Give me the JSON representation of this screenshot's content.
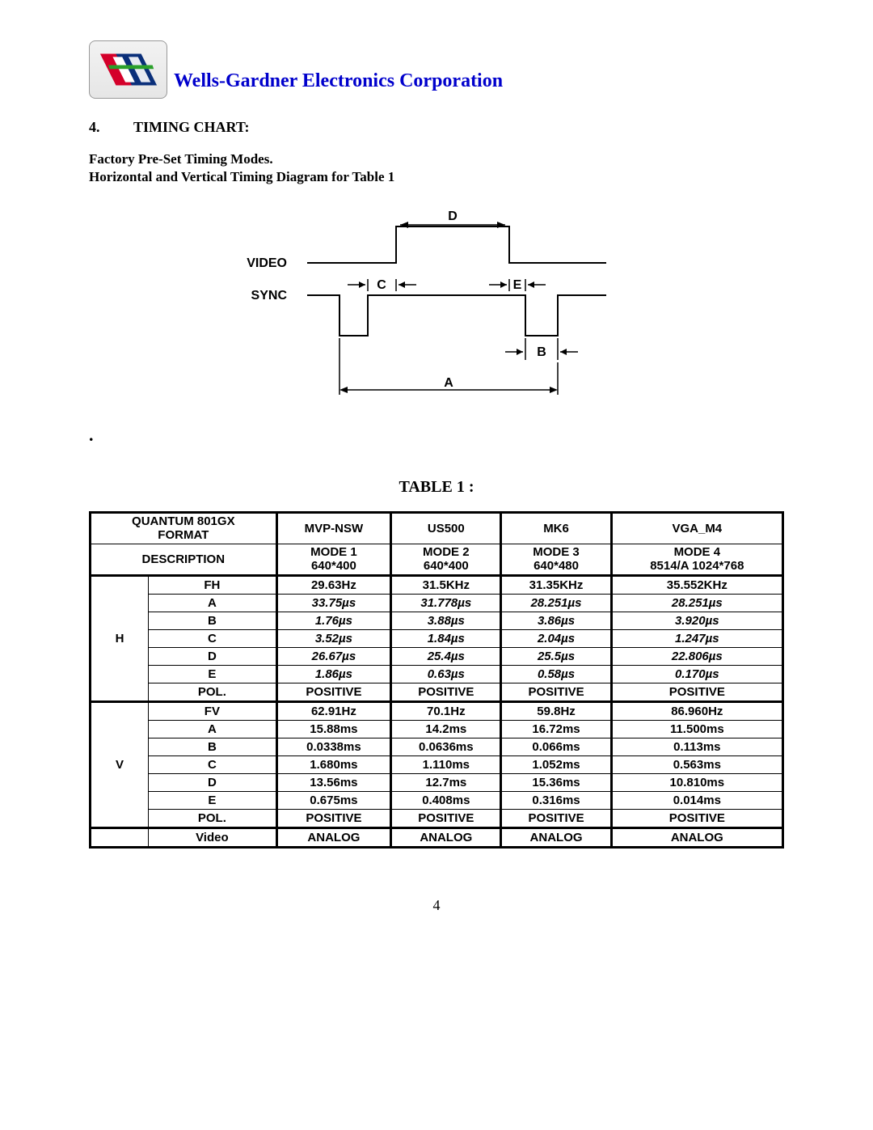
{
  "header": {
    "company": "Wells-Gardner Electronics Corporation"
  },
  "section": {
    "number": "4.",
    "title": "TIMING CHART:",
    "sub1": "Factory Pre-Set Timing Modes.",
    "sub2": "Horizontal and Vertical Timing Diagram for Table 1"
  },
  "diagram": {
    "labels": {
      "video": "VIDEO",
      "sync": "SYNC",
      "A": "A",
      "B": "B",
      "C": "C",
      "D": "D",
      "E": "E"
    },
    "stroke": "#000000"
  },
  "table": {
    "title": "TABLE 1 :",
    "header_row1": [
      "QUANTUM 801GX FORMAT",
      "MVP-NSW",
      "US500",
      "MK6",
      "VGA_M4"
    ],
    "header_row2_label": "DESCRIPTION",
    "header_row2_modes": [
      [
        "MODE 1",
        "640*400"
      ],
      [
        "MODE 2",
        "640*400"
      ],
      [
        "MODE 3",
        "640*480"
      ],
      [
        "MODE 4",
        "8514/A 1024*768"
      ]
    ],
    "groups": [
      {
        "label": "H",
        "rows": [
          {
            "p": "FH",
            "v": [
              "29.63Hz",
              "31.5KHz",
              "31.35KHz",
              "35.552KHz"
            ],
            "italic": false
          },
          {
            "p": "A",
            "v": [
              "33.75µs",
              "31.778µs",
              "28.251µs",
              "28.251µs"
            ],
            "italic": true
          },
          {
            "p": "B",
            "v": [
              "1.76µs",
              "3.88µs",
              "3.86µs",
              "3.920µs"
            ],
            "italic": true
          },
          {
            "p": "C",
            "v": [
              "3.52µs",
              "1.84µs",
              "2.04µs",
              "1.247µs"
            ],
            "italic": true
          },
          {
            "p": "D",
            "v": [
              "26.67µs",
              "25.4µs",
              "25.5µs",
              "22.806µs"
            ],
            "italic": true
          },
          {
            "p": "E",
            "v": [
              "1.86µs",
              "0.63µs",
              "0.58µs",
              "0.170µs"
            ],
            "italic": true
          },
          {
            "p": "POL.",
            "v": [
              "POSITIVE",
              "POSITIVE",
              "POSITIVE",
              "POSITIVE"
            ],
            "italic": false
          }
        ]
      },
      {
        "label": "V",
        "rows": [
          {
            "p": "FV",
            "v": [
              "62.91Hz",
              "70.1Hz",
              "59.8Hz",
              "86.960Hz"
            ],
            "italic": false
          },
          {
            "p": "A",
            "v": [
              "15.88ms",
              "14.2ms",
              "16.72ms",
              "11.500ms"
            ],
            "italic": false
          },
          {
            "p": "B",
            "v": [
              "0.0338ms",
              "0.0636ms",
              "0.066ms",
              "0.113ms"
            ],
            "italic": false
          },
          {
            "p": "C",
            "v": [
              "1.680ms",
              "1.110ms",
              "1.052ms",
              "0.563ms"
            ],
            "italic": false
          },
          {
            "p": "D",
            "v": [
              "13.56ms",
              "12.7ms",
              "15.36ms",
              "10.810ms"
            ],
            "italic": false
          },
          {
            "p": "E",
            "v": [
              "0.675ms",
              "0.408ms",
              "0.316ms",
              "0.014ms"
            ],
            "italic": false
          },
          {
            "p": "POL.",
            "v": [
              "POSITIVE",
              "POSITIVE",
              "POSITIVE",
              "POSITIVE"
            ],
            "italic": false
          }
        ]
      }
    ],
    "video_row": {
      "p": "Video",
      "v": [
        "ANALOG",
        "ANALOG",
        "ANALOG",
        "ANALOG"
      ]
    }
  },
  "page_number": "4"
}
